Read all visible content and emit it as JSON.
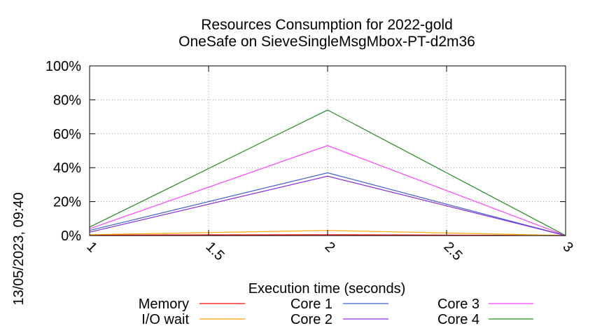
{
  "chart_data": {
    "type": "line",
    "title": "Resources Consumption for 2022-gold",
    "subtitle": "OneSafe on SieveSingleMsgMbox-PT-d2m36",
    "xlabel": "Execution time (seconds)",
    "ylabel": "",
    "side_label": "13/05/2023, 09:40",
    "xlim": [
      1,
      3
    ],
    "ylim": [
      0,
      100
    ],
    "x_ticks": [
      1,
      1.5,
      2,
      2.5,
      3
    ],
    "x_tick_labels": [
      "1",
      "1.5",
      "2",
      "2.5",
      "3"
    ],
    "y_ticks": [
      0,
      20,
      40,
      60,
      80,
      100
    ],
    "y_tick_labels": [
      "0%",
      "20%",
      "40%",
      "60%",
      "80%",
      "100%"
    ],
    "grid": true,
    "legend_position": "bottom",
    "series": [
      {
        "name": "Memory",
        "color": "#ff0000",
        "x": [
          1,
          2,
          3
        ],
        "y": [
          0.3,
          0.5,
          0
        ]
      },
      {
        "name": "I/O wait",
        "color": "#ffa500",
        "x": [
          1,
          2,
          3
        ],
        "y": [
          0.5,
          3,
          0
        ]
      },
      {
        "name": "Core 1",
        "color": "#4060d0",
        "x": [
          1,
          2,
          3
        ],
        "y": [
          3,
          37,
          0
        ]
      },
      {
        "name": "Core 2",
        "color": "#8a2be2",
        "x": [
          1,
          2,
          3
        ],
        "y": [
          2,
          35,
          0
        ]
      },
      {
        "name": "Core 3",
        "color": "#ff40ff",
        "x": [
          1,
          2,
          3
        ],
        "y": [
          4,
          53,
          0
        ]
      },
      {
        "name": "Core 4",
        "color": "#1e8c1e",
        "x": [
          1,
          2,
          3
        ],
        "y": [
          5,
          74,
          0
        ]
      }
    ]
  }
}
